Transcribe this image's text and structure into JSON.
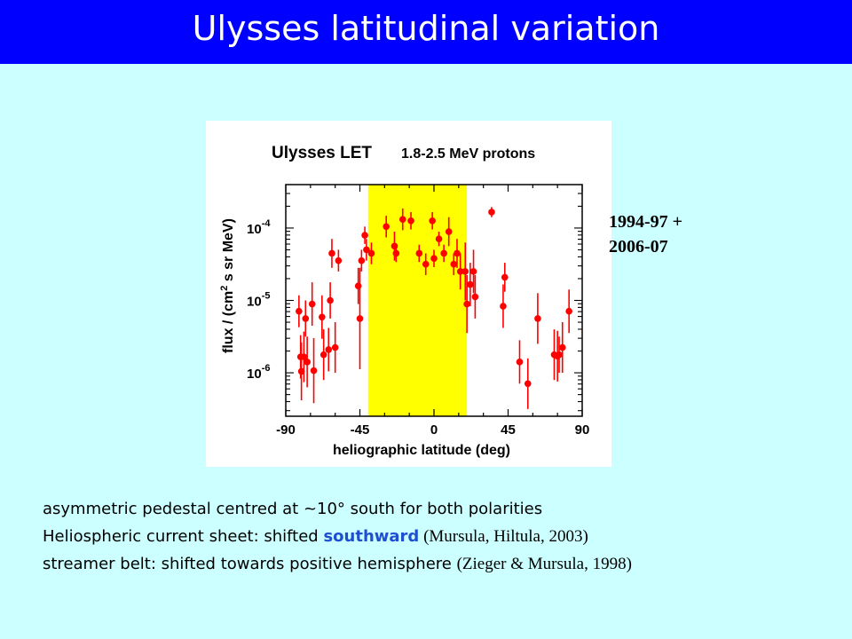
{
  "slide": {
    "title": "Ulysses latitudinal variation"
  },
  "annotation": {
    "years_line1": "1994-97 +",
    "years_line2": "2006-07"
  },
  "bullets": {
    "b1": "asymmetric pedestal centred at ~10° south for both polarities",
    "b2_pre": "Heliospheric current sheet: shifted ",
    "b2_hl": "southward",
    "b2_ref": " (Mursula, Hiltula, 2003)",
    "b3_pre": "streamer belt: shifted towards positive hemisphere ",
    "b3_ref": "(Zieger & Mursula, 1998)"
  },
  "colors": {
    "header": "#0000ff",
    "background": "#ccffff",
    "band": "#ffff00",
    "points": "#ff0000",
    "highlight": "#1f4fcf"
  },
  "chart_data": {
    "type": "scatter",
    "title_main": "Ulysses LET",
    "title_sub": "1.8-2.5 MeV protons",
    "xlabel": "heliographic latitude (deg)",
    "ylabel_pre": "flux  / (cm",
    "ylabel_sup": "2",
    "ylabel_post": " s sr MeV)",
    "xlim": [
      -90,
      90
    ],
    "ylog_lim": [
      -6.6,
      -3.4
    ],
    "log_scale": true,
    "x_ticks": [
      {
        "v": -90,
        "label": "-90"
      },
      {
        "v": -45,
        "label": "-45"
      },
      {
        "v": 0,
        "label": "0"
      },
      {
        "v": 45,
        "label": "45"
      },
      {
        "v": 90,
        "label": "90"
      }
    ],
    "y_ticks": [
      {
        "exp": -4,
        "base": "10",
        "sup": "-4"
      },
      {
        "exp": -5,
        "base": "10",
        "sup": "-5"
      },
      {
        "exp": -6,
        "base": "10",
        "sup": "-6"
      }
    ],
    "band": [
      -40,
      20
    ],
    "points": [
      [
        -82,
        -5.15,
        0.22
      ],
      [
        -81,
        -5.78,
        0.3
      ],
      [
        -80.5,
        -5.98,
        0.4
      ],
      [
        -79,
        -5.78,
        0.35
      ],
      [
        -78,
        -5.25,
        0.25
      ],
      [
        -77,
        -5.85,
        0.35
      ],
      [
        -74,
        -5.05,
        0.3
      ],
      [
        -73,
        -5.97,
        0.45
      ],
      [
        -68,
        -5.23,
        0.3
      ],
      [
        -67,
        -5.75,
        0.35
      ],
      [
        -64,
        -5.68,
        0.3
      ],
      [
        -63,
        -5.0,
        0.25
      ],
      [
        -62,
        -4.35,
        0.2
      ],
      [
        -60,
        -5.65,
        0.35
      ],
      [
        -58,
        -4.45,
        0.15
      ],
      [
        -46,
        -4.8,
        0.25
      ],
      [
        -45,
        -5.25,
        0.7
      ],
      [
        -44,
        -4.45,
        0.15
      ],
      [
        -42,
        -4.1,
        0.12
      ],
      [
        -41,
        -4.3,
        0.15
      ],
      [
        -38,
        -4.35,
        0.15
      ],
      [
        -29,
        -3.98,
        0.15
      ],
      [
        -24,
        -4.25,
        0.2
      ],
      [
        -23,
        -4.35,
        0.12
      ],
      [
        -19,
        -3.88,
        0.15
      ],
      [
        -14,
        -3.9,
        0.12
      ],
      [
        -9,
        -4.35,
        0.12
      ],
      [
        -5,
        -4.5,
        0.15
      ],
      [
        -1,
        -3.9,
        0.12
      ],
      [
        0,
        -4.42,
        0.12
      ],
      [
        3,
        -4.15,
        0.1
      ],
      [
        6,
        -4.35,
        0.12
      ],
      [
        9,
        -4.05,
        0.2
      ],
      [
        12,
        -4.5,
        0.15
      ],
      [
        14,
        -4.35,
        0.2
      ],
      [
        16,
        -4.6,
        0.25
      ],
      [
        19,
        -4.6,
        0.4
      ],
      [
        20,
        -5.05,
        0.4
      ],
      [
        22,
        -4.78,
        0.3
      ],
      [
        24,
        -4.6,
        0.3
      ],
      [
        25,
        -4.95,
        0.3
      ],
      [
        35,
        -3.78,
        0.07
      ],
      [
        42,
        -5.08,
        0.3
      ],
      [
        43,
        -4.68,
        0.2
      ],
      [
        52,
        -5.85,
        0.3
      ],
      [
        57,
        -6.15,
        0.35
      ],
      [
        63,
        -5.25,
        0.35
      ],
      [
        73,
        -5.75,
        0.35
      ],
      [
        75,
        -5.77,
        0.35
      ],
      [
        76,
        -5.75,
        0.25
      ],
      [
        78,
        -5.65,
        0.35
      ],
      [
        82,
        -5.15,
        0.3
      ]
    ]
  }
}
